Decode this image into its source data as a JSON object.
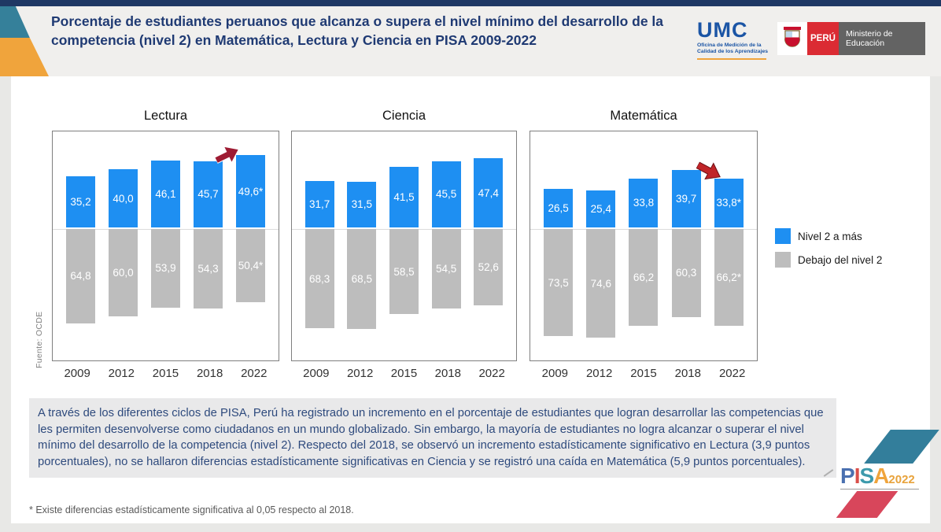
{
  "page": {
    "title": "Porcentaje de estudiantes peruanos que alcanza o supera el nivel mínimo del desarrollo de la competencia (nivel 2) en Matemática, Lectura y Ciencia en PISA 2009-2022",
    "source_label": "Fuente: OCDE",
    "summary": "A través de los diferentes ciclos de PISA, Perú ha registrado un incremento en el porcentaje de estudiantes que logran desarrollar las competencias que les permiten desenvolverse como ciudadanos en un mundo globalizado. Sin embargo, la mayoría de estudiantes no logra alcanzar o superar el nivel mínimo del desarrollo de la competencia (nivel 2). Respecto del 2018, se observó un incremento estadísticamente significativo en Lectura (3,9 puntos porcentuales), no se hallaron diferencias estadísticamente significativas en Ciencia y se registró una caída en Matemática (5,9 puntos porcentuales).",
    "footnote": "* Existe diferencias estadísticamente significativa al 0,05 respecto al 2018."
  },
  "logos": {
    "umc": {
      "name": "UMC",
      "subtitle": "Oficina de Medición de la Calidad de los Aprendizajes"
    },
    "minedu": {
      "country": "PERÚ",
      "ministry": "Ministerio de Educación"
    },
    "pisa": {
      "letters": [
        {
          "ch": "P",
          "color": "#4A70B0"
        },
        {
          "ch": "I",
          "color": "#D94F4A"
        },
        {
          "ch": "S",
          "color": "#3D9AAC"
        },
        {
          "ch": "A",
          "color": "#F0A43C"
        }
      ],
      "year": "2022",
      "year_color": "#E8A33C"
    }
  },
  "legend": {
    "items": [
      {
        "label": "Nivel 2 a más",
        "color": "#1E8FF2"
      },
      {
        "label": "Debajo del nivel 2",
        "color": "#BDBDBD"
      }
    ]
  },
  "chart_data": [
    {
      "type": "bar",
      "stacked": true,
      "title": "Lectura",
      "categories": [
        "2009",
        "2012",
        "2015",
        "2018",
        "2022"
      ],
      "series": [
        {
          "name": "Nivel 2 a más",
          "color": "#1E8FF2",
          "values": [
            35.2,
            40.0,
            46.1,
            45.7,
            49.6
          ],
          "labels": [
            "35,2",
            "40,0",
            "46,1",
            "45,7",
            "49,6*"
          ]
        },
        {
          "name": "Debajo del nivel 2",
          "color": "#BDBDBD",
          "values": [
            64.8,
            60.0,
            53.9,
            54.3,
            50.4
          ],
          "labels": [
            "64,8",
            "60,0",
            "53,9",
            "54,3",
            "50,4*"
          ]
        }
      ],
      "annotation_arrow": "up",
      "unit": "%",
      "ylim": [
        0,
        100
      ],
      "grid": false
    },
    {
      "type": "bar",
      "stacked": true,
      "title": "Ciencia",
      "categories": [
        "2009",
        "2012",
        "2015",
        "2018",
        "2022"
      ],
      "series": [
        {
          "name": "Nivel 2 a más",
          "color": "#1E8FF2",
          "values": [
            31.7,
            31.5,
            41.5,
            45.5,
            47.4
          ],
          "labels": [
            "31,7",
            "31,5",
            "41,5",
            "45,5",
            "47,4"
          ]
        },
        {
          "name": "Debajo del nivel 2",
          "color": "#BDBDBD",
          "values": [
            68.3,
            68.5,
            58.5,
            54.5,
            52.6
          ],
          "labels": [
            "68,3",
            "68,5",
            "58,5",
            "54,5",
            "52,6"
          ]
        }
      ],
      "annotation_arrow": null,
      "unit": "%",
      "ylim": [
        0,
        100
      ],
      "grid": false
    },
    {
      "type": "bar",
      "stacked": true,
      "title": "Matemática",
      "categories": [
        "2009",
        "2012",
        "2015",
        "2018",
        "2022"
      ],
      "series": [
        {
          "name": "Nivel 2 a más",
          "color": "#1E8FF2",
          "values": [
            26.5,
            25.4,
            33.8,
            39.7,
            33.8
          ],
          "labels": [
            "26,5",
            "25,4",
            "33,8",
            "39,7",
            "33,8*"
          ]
        },
        {
          "name": "Debajo del nivel 2",
          "color": "#BDBDBD",
          "values": [
            73.5,
            74.6,
            66.2,
            60.3,
            66.2
          ],
          "labels": [
            "73,5",
            "74,6",
            "66,2",
            "60,3",
            "66,2*"
          ]
        }
      ],
      "annotation_arrow": "down",
      "unit": "%",
      "ylim": [
        0,
        100
      ],
      "grid": false
    }
  ],
  "arrow_colors": {
    "up": "#9E1B33",
    "down": "#C02428"
  }
}
